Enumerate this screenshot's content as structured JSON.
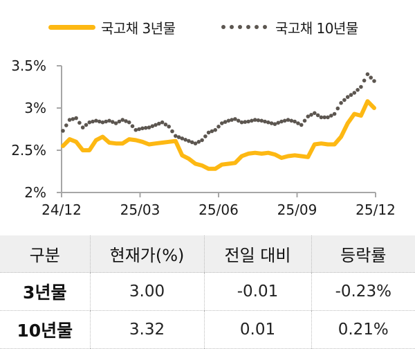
{
  "legend": {
    "series1_label": "국고채 3년물",
    "series2_label": "국고채 10년물"
  },
  "colors": {
    "series1": "#FDB813",
    "series2": "#5C5650",
    "axis": "#A6A6A6",
    "table_header_bg": "#EFEFEF"
  },
  "chart_data": {
    "type": "line",
    "title": "",
    "xlabel": "",
    "ylabel": "",
    "ylim": [
      2.0,
      3.5
    ],
    "yticks": [
      "3.5%",
      "3%",
      "2.5%",
      "2%"
    ],
    "ytick_values": [
      3.5,
      3.0,
      2.5,
      2.0
    ],
    "xticks": [
      "24/12",
      "25/03",
      "25/06",
      "25/09",
      "25/12"
    ],
    "grid": false,
    "legend_position": "top",
    "x": [
      "24/12",
      "24/12",
      "24/12",
      "25/01",
      "25/01",
      "25/01",
      "25/01",
      "25/02",
      "25/02",
      "25/02",
      "25/02",
      "25/03",
      "25/03",
      "25/03",
      "25/04",
      "25/04",
      "25/04",
      "25/04",
      "25/05",
      "25/05",
      "25/05",
      "25/05",
      "25/06",
      "25/06",
      "25/06",
      "25/06",
      "25/07",
      "25/07",
      "25/07",
      "25/07",
      "25/08",
      "25/08",
      "25/08",
      "25/08",
      "25/09",
      "25/09",
      "25/09",
      "25/09",
      "25/10",
      "25/10",
      "25/10",
      "25/10",
      "25/11",
      "25/11",
      "25/11",
      "25/11",
      "25/12",
      "25/12"
    ],
    "series": [
      {
        "name": "국고채 3년물",
        "style": "solid",
        "values": [
          2.55,
          2.63,
          2.6,
          2.5,
          2.5,
          2.62,
          2.66,
          2.59,
          2.58,
          2.58,
          2.63,
          2.62,
          2.6,
          2.57,
          2.58,
          2.59,
          2.6,
          2.61,
          2.44,
          2.4,
          2.34,
          2.32,
          2.28,
          2.28,
          2.33,
          2.34,
          2.35,
          2.43,
          2.46,
          2.47,
          2.46,
          2.47,
          2.45,
          2.41,
          2.43,
          2.44,
          2.43,
          2.42,
          2.57,
          2.58,
          2.57,
          2.57,
          2.66,
          2.82,
          2.93,
          2.91,
          3.08,
          3.0
        ]
      },
      {
        "name": "국고채 10년물",
        "style": "dotted",
        "values": [
          2.73,
          2.86,
          2.88,
          2.77,
          2.83,
          2.85,
          2.83,
          2.85,
          2.82,
          2.86,
          2.83,
          2.74,
          2.76,
          2.77,
          2.8,
          2.83,
          2.78,
          2.67,
          2.64,
          2.61,
          2.58,
          2.62,
          2.71,
          2.74,
          2.82,
          2.85,
          2.87,
          2.83,
          2.84,
          2.86,
          2.85,
          2.83,
          2.81,
          2.84,
          2.86,
          2.84,
          2.8,
          2.9,
          2.94,
          2.89,
          2.89,
          2.93,
          3.06,
          3.13,
          3.18,
          3.25,
          3.4,
          3.32
        ]
      }
    ]
  },
  "table": {
    "headers": [
      "구분",
      "현재가(%)",
      "전일 대비",
      "등락률"
    ],
    "rows": [
      {
        "label": "3년물",
        "price": "3.00",
        "change": "-0.01",
        "rate": "-0.23%"
      },
      {
        "label": "10년물",
        "price": "3.32",
        "change": "0.01",
        "rate": "0.21%"
      }
    ]
  }
}
